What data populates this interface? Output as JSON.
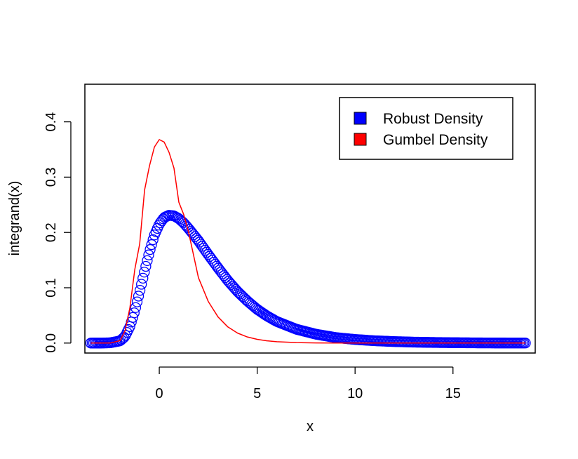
{
  "chart_data": {
    "type": "line",
    "xlabel": "x",
    "ylabel": "integrand(x)",
    "xlim": [
      -3.8,
      19.2
    ],
    "ylim": [
      -0.018,
      0.468
    ],
    "x_ticks": [
      0,
      5,
      10,
      15
    ],
    "y_ticks": [
      0.0,
      0.1,
      0.2,
      0.3,
      0.4
    ],
    "x_tick_labels": [
      "0",
      "5",
      "10",
      "15"
    ],
    "y_tick_labels": [
      "0.0",
      "0.1",
      "0.2",
      "0.3",
      "0.4"
    ],
    "legend_position": "top-right",
    "series": [
      {
        "name": "Robust Density",
        "style": "circles",
        "color": "#0000FF",
        "x": [
          -3.5,
          -3.0,
          -2.5,
          -2.0,
          -1.75,
          -1.5,
          -1.25,
          -1.0,
          -0.75,
          -0.5,
          -0.25,
          0.0,
          0.25,
          0.5,
          0.75,
          1.0,
          1.25,
          1.5,
          2.0,
          2.5,
          3.0,
          3.5,
          4.0,
          4.5,
          5.0,
          5.5,
          6.0,
          7.0,
          8.0,
          9.0,
          10.0,
          11.0,
          12.0,
          13.0,
          14.0,
          15.0,
          16.0,
          17.0,
          18.0,
          18.7
        ],
        "y": [
          0.0,
          0.0,
          0.0005,
          0.004,
          0.012,
          0.03,
          0.058,
          0.093,
          0.13,
          0.165,
          0.195,
          0.215,
          0.227,
          0.231,
          0.23,
          0.225,
          0.217,
          0.207,
          0.185,
          0.16,
          0.136,
          0.113,
          0.093,
          0.076,
          0.061,
          0.049,
          0.039,
          0.025,
          0.016,
          0.01,
          0.0065,
          0.0042,
          0.0027,
          0.0017,
          0.0011,
          0.0007,
          0.0004,
          0.0002,
          0.0001,
          0.0001
        ]
      },
      {
        "name": "Gumbel Density",
        "style": "line",
        "color": "#FF0000",
        "x": [
          -3.5,
          -3.0,
          -2.5,
          -2.0,
          -1.75,
          -1.5,
          -1.25,
          -1.0,
          -0.75,
          -0.5,
          -0.25,
          0.0,
          0.25,
          0.5,
          0.75,
          1.0,
          1.25,
          1.5,
          2.0,
          2.5,
          3.0,
          3.5,
          4.0,
          4.5,
          5.0,
          5.5,
          6.0,
          7.0,
          8.0,
          9.0,
          10.0,
          12.0,
          15.0,
          18.7
        ],
        "y": [
          0.0,
          0.0,
          0.0,
          0.0045,
          0.0217,
          0.0639,
          0.1332,
          0.1794,
          0.2768,
          0.3204,
          0.3544,
          0.3679,
          0.3634,
          0.3447,
          0.3164,
          0.2546,
          0.2322,
          0.1999,
          0.1182,
          0.0753,
          0.0473,
          0.0292,
          0.018,
          0.011,
          0.0067,
          0.0041,
          0.0025,
          0.0009,
          0.0003,
          0.0001,
          0.0,
          0.0,
          0.0,
          0.0
        ]
      }
    ]
  }
}
